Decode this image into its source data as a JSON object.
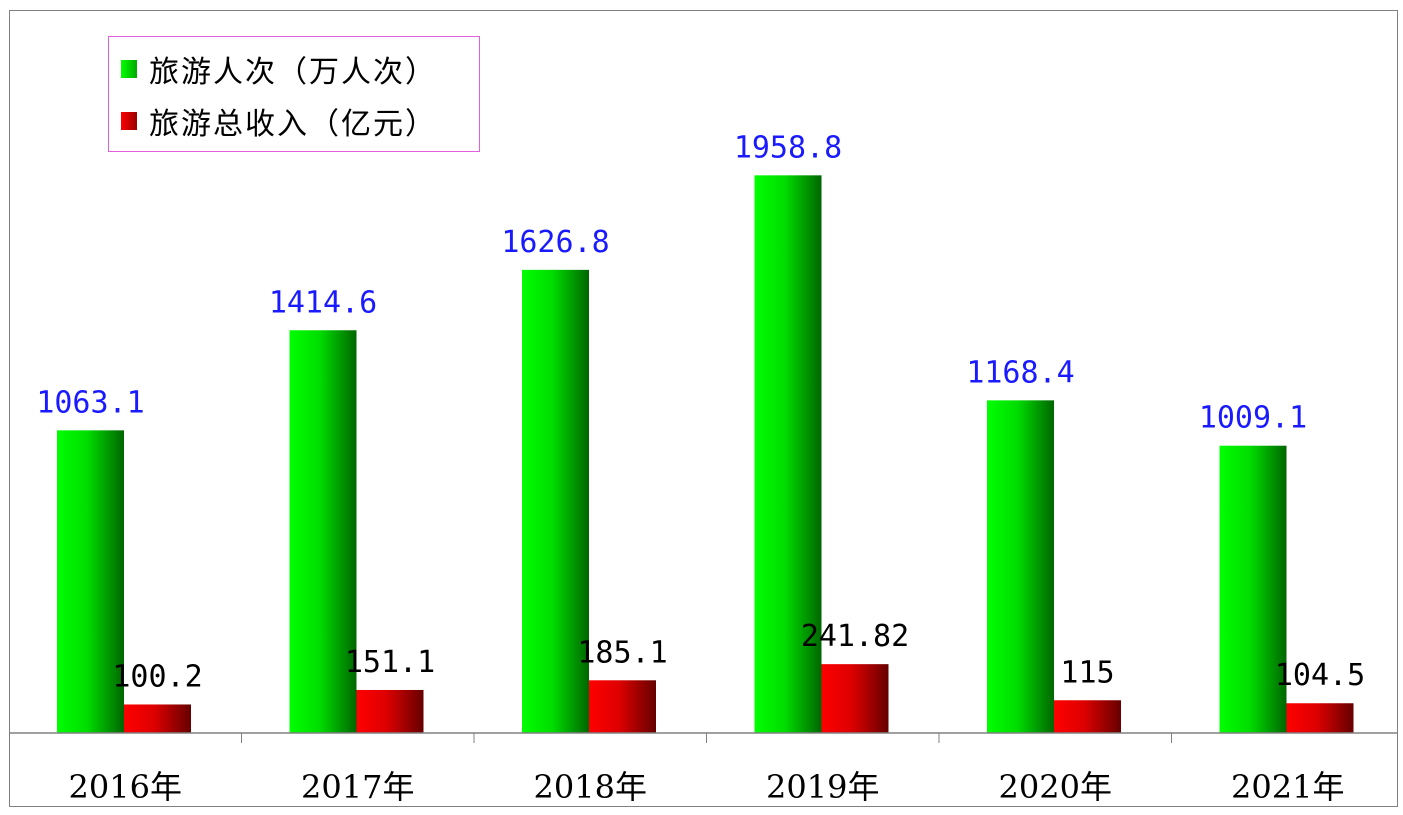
{
  "chart_data": {
    "type": "bar",
    "categories": [
      "2016年",
      "2017年",
      "2018年",
      "2019年",
      "2020年",
      "2021年"
    ],
    "series": [
      {
        "name": "旅游人次（万人次）",
        "values": [
          1063.1,
          1414.6,
          1626.8,
          1958.8,
          1168.4,
          1009.1
        ],
        "labels": [
          "1063.1",
          "1414.6",
          "1626.8",
          "1958.8",
          "1168.4",
          "1009.1"
        ],
        "color": "#00cc00",
        "label_color": "#1a1aff"
      },
      {
        "name": "旅游总收入（亿元）",
        "values": [
          100.2,
          151.1,
          185.1,
          241.82,
          115,
          104.5
        ],
        "labels": [
          "100.2",
          "151.1",
          "185.1",
          "241.82",
          "115",
          "104.5"
        ],
        "color": "#dd0000",
        "label_color": "#000000"
      }
    ],
    "title": "",
    "xlabel": "",
    "ylabel": "",
    "grid": false,
    "legend_position": "top-left"
  }
}
